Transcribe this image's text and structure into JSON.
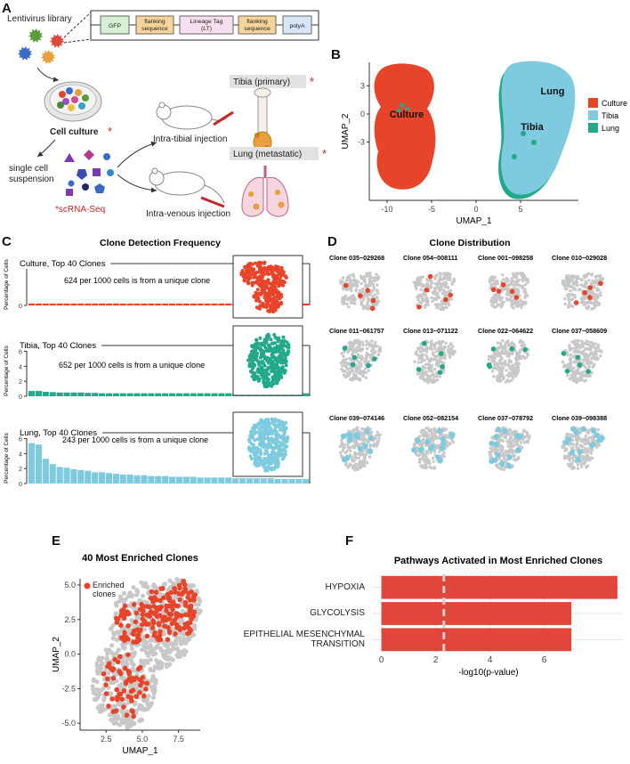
{
  "panel_labels": [
    "A",
    "B",
    "C",
    "D",
    "E",
    "F"
  ],
  "panel_a": {
    "library": "Lentivirus library",
    "construct": [
      [
        "GFP"
      ],
      [
        "flanking",
        "sequence"
      ],
      [
        "Lineage Tag",
        "(LT)"
      ],
      [
        "flanking",
        "sequence"
      ],
      [
        "polyA"
      ]
    ],
    "cell_culture": "Cell culture",
    "asterisk": "*",
    "suspension": [
      "single cell",
      "suspension"
    ],
    "scrna": "*scRNA-Seq",
    "tibial": "Intra-tibial injection",
    "venous": "Intra-venous injection",
    "tibia": "Tibia (primary)",
    "lung": "Lung (metastatic)"
  },
  "panel_c": {
    "title": "Clone Detection Frequency"
  },
  "panel_d": {
    "title": "Clone Distribution",
    "rows": [
      {
        "color": "#e8442a",
        "clones": [
          "Clone 035−029268",
          "Clone 054−008111",
          "Clone 001−098258",
          "Clone 010−029028"
        ]
      },
      {
        "color": "#23a98a",
        "clones": [
          "Clone 011−061757",
          "Clone 013−071122",
          "Clone 022−064622",
          "Clone 037−058609"
        ]
      },
      {
        "color": "#7ecbe0",
        "clones": [
          "Clone 039−074146",
          "Clone 052−082154",
          "Clone 037−078792",
          "Clone 039−098388"
        ]
      }
    ]
  },
  "chart_data": [
    {
      "type": "scatter",
      "xlabel": "UMAP_1",
      "ylabel": "UMAP_2",
      "xlim": [
        -12,
        11.5
      ],
      "ylim": [
        -9.2,
        5.5
      ],
      "xticks": [
        -10,
        -5,
        0,
        5
      ],
      "yticks": [
        -3,
        0,
        3
      ],
      "legend": "right",
      "series": [
        {
          "name": "Culture",
          "color": "#e8442a"
        },
        {
          "name": "Tibia",
          "color": "#7ecbe0"
        },
        {
          "name": "Lung",
          "color": "#23a98a"
        }
      ],
      "annotations": [
        "Culture",
        "Lung",
        "Tibia"
      ]
    },
    {
      "type": "bar",
      "label": "Culture, Top 40 Clones",
      "note": "624 per 1000 cells is from a unique clone",
      "ylabel": "Percentage of Cells",
      "color": "#e8442a",
      "ylim": [
        0,
        6
      ],
      "yticks": [
        0
      ],
      "values": [
        0.3,
        0.3,
        0.3,
        0.3,
        0.3,
        0.3,
        0.3,
        0.3,
        0.3,
        0.3,
        0.3,
        0.3,
        0.3,
        0.3,
        0.3,
        0.3,
        0.3,
        0.3,
        0.3,
        0.3,
        0.3,
        0.3,
        0.3,
        0.3,
        0.3,
        0.3,
        0.3,
        0.3,
        0.3,
        0.3,
        0.3,
        0.3,
        0.3,
        0.3,
        0.3,
        0.3,
        0.3,
        0.3,
        0.3,
        0.3
      ]
    },
    {
      "type": "bar",
      "label": "Tibia, Top 40 Clones",
      "note": "652 per 1000 cells is from a unique clone",
      "ylabel": "Percentage of Cells",
      "color": "#23a98a",
      "ylim": [
        0,
        6.3
      ],
      "yticks": [
        0,
        2,
        4,
        6
      ],
      "values": [
        0.7,
        0.7,
        0.6,
        0.55,
        0.5,
        0.5,
        0.5,
        0.5,
        0.45,
        0.45,
        0.4,
        0.4,
        0.4,
        0.4,
        0.4,
        0.4,
        0.4,
        0.4,
        0.4,
        0.4,
        0.4,
        0.4,
        0.4,
        0.4,
        0.4,
        0.4,
        0.4,
        0.4,
        0.4,
        0.4,
        0.4,
        0.4,
        0.4,
        0.4,
        0.4,
        0.4,
        0.4,
        0.4,
        0.4,
        0.4
      ]
    },
    {
      "type": "bar",
      "label": "Lung, Top 40 Clones",
      "note": "243 per 1000 cells is from a unique clone",
      "ylabel": "Percentage of Cells",
      "color": "#7ecbe0",
      "ylim": [
        0,
        6.3
      ],
      "yticks": [
        0,
        2,
        4,
        6
      ],
      "values": [
        5.4,
        5.2,
        3.3,
        2.6,
        2.2,
        2.1,
        1.9,
        1.8,
        1.7,
        1.5,
        1.5,
        1.4,
        1.3,
        1.2,
        1.2,
        1.1,
        1.1,
        1.0,
        1.0,
        1.0,
        0.9,
        0.9,
        0.9,
        0.9,
        0.8,
        0.8,
        0.8,
        0.8,
        0.8,
        0.7,
        0.7,
        0.7,
        0.7,
        0.7,
        0.7,
        0.6,
        0.6,
        0.6,
        0.6,
        0.6
      ]
    },
    {
      "type": "scatter",
      "title": "40 Most Enriched Clones",
      "xlabel": "UMAP_1",
      "ylabel": "UMAP_2",
      "xlim": [
        0.7,
        9
      ],
      "ylim": [
        -5.5,
        5.45
      ],
      "xticks": [
        2.5,
        {
          "value": 5,
          "label": "5.0"
        },
        7.5
      ],
      "yticks": [
        {
          "value": -5,
          "label": "-5.0"
        },
        -2.5,
        {
          "value": 0,
          "label": "0.0"
        },
        2.5,
        {
          "value": 5,
          "label": "5.0"
        }
      ],
      "legend": "top-left",
      "series": [
        {
          "name": "Enriched clones",
          "color": "#e8442a"
        }
      ]
    },
    {
      "type": "bar",
      "horizontal": true,
      "title": "Pathways Activated in Most Enriched Clones",
      "xlabel": "-log10(p-value)",
      "categories": [
        "HYPOXIA",
        "GLYCOLYSIS",
        "EPITHELIAL MESENCHYMAL TRANSITION"
      ],
      "values": [
        8.7,
        7.0,
        7.0
      ],
      "color": "#e0473a",
      "reference_line": 2.3,
      "xlim": [
        -0.35,
        8.9
      ],
      "xticks": [
        0,
        2,
        4,
        6
      ],
      "grid": true
    }
  ]
}
